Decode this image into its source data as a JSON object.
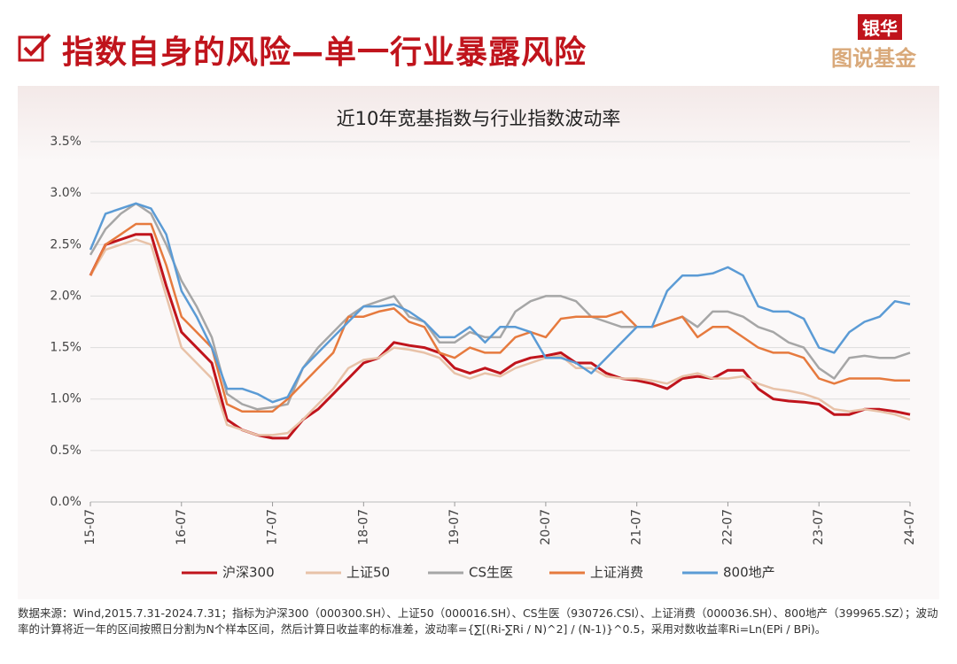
{
  "header": {
    "title": "指数自身的风险—单一行业暴露风险",
    "logo_top": "银华",
    "logo_bottom": "图说基金"
  },
  "footnote": "数据来源：Wind,2015.7.31-2024.7.31；指标为沪深300（000300.SH）、上证50（000016.SH）、CS生医（930726.CSI）、上证消费（000036.SH）、800地产（399965.SZ）；波动率的计算将近一年的区间按照日分割为N个样本区间，然后计算日收益率的标准差，波动率={∑[(Ri-∑Ri / N)^2] / (N-1)}^0.5，采用对数收益率Ri=Ln(EPi / BPi)。",
  "chart_data": {
    "type": "line",
    "title": "近10年宽基指数与行业指数波动率",
    "categories": [
      "15-07",
      null,
      null,
      null,
      null,
      null,
      "16-07",
      null,
      null,
      null,
      null,
      null,
      "17-07",
      null,
      null,
      null,
      null,
      null,
      "18-07",
      null,
      null,
      null,
      null,
      null,
      "19-07",
      null,
      null,
      null,
      null,
      null,
      "20-07",
      null,
      null,
      null,
      null,
      null,
      "21-07",
      null,
      null,
      null,
      null,
      null,
      "22-07",
      null,
      null,
      null,
      null,
      null,
      "23-07",
      null,
      null,
      null,
      null,
      null,
      "24-07"
    ],
    "ylim": [
      0,
      3.5
    ],
    "yticks": [
      {
        "value": 0,
        "label": "0.0%"
      },
      {
        "value": 0.5,
        "label": "0.5%"
      },
      {
        "value": 1,
        "label": "1.0%"
      },
      {
        "value": 1.5,
        "label": "1.5%"
      },
      {
        "value": 2,
        "label": "2.0%"
      },
      {
        "value": 2.5,
        "label": "2.5%"
      },
      {
        "value": 3,
        "label": "3.0%"
      },
      {
        "value": 3.5,
        "label": "3.5%"
      }
    ],
    "grid": true,
    "legend": "bottom",
    "series": [
      {
        "name": "沪深300",
        "color": "#c0141c",
        "values": [
          2.2,
          2.5,
          2.55,
          2.6,
          2.6,
          2.1,
          1.65,
          1.5,
          1.35,
          0.8,
          0.7,
          0.65,
          0.62,
          0.62,
          0.8,
          0.9,
          1.05,
          1.2,
          1.35,
          1.4,
          1.55,
          1.52,
          1.5,
          1.45,
          1.3,
          1.25,
          1.3,
          1.25,
          1.35,
          1.4,
          1.42,
          1.45,
          1.35,
          1.35,
          1.25,
          1.2,
          1.18,
          1.15,
          1.1,
          1.2,
          1.22,
          1.2,
          1.28,
          1.28,
          1.1,
          1.0,
          0.98,
          0.97,
          0.95,
          0.85,
          0.85,
          0.9,
          0.9,
          0.88,
          0.85
        ]
      },
      {
        "name": "上证50",
        "color": "#e8c2a8",
        "values": [
          2.2,
          2.45,
          2.5,
          2.55,
          2.5,
          2.0,
          1.5,
          1.35,
          1.2,
          0.75,
          0.7,
          0.65,
          0.65,
          0.67,
          0.8,
          0.95,
          1.1,
          1.3,
          1.38,
          1.4,
          1.5,
          1.48,
          1.45,
          1.4,
          1.25,
          1.2,
          1.25,
          1.22,
          1.3,
          1.35,
          1.4,
          1.42,
          1.3,
          1.3,
          1.22,
          1.2,
          1.2,
          1.18,
          1.15,
          1.22,
          1.25,
          1.2,
          1.2,
          1.22,
          1.15,
          1.1,
          1.08,
          1.05,
          1.0,
          0.9,
          0.88,
          0.9,
          0.88,
          0.85,
          0.8
        ]
      },
      {
        "name": "CS生医",
        "color": "#a6a6a6",
        "values": [
          2.4,
          2.65,
          2.8,
          2.9,
          2.8,
          2.5,
          2.15,
          1.9,
          1.6,
          1.05,
          0.95,
          0.9,
          0.92,
          0.95,
          1.3,
          1.5,
          1.65,
          1.8,
          1.9,
          1.95,
          2.0,
          1.8,
          1.75,
          1.55,
          1.55,
          1.65,
          1.6,
          1.6,
          1.85,
          1.95,
          2.0,
          2.0,
          1.95,
          1.8,
          1.75,
          1.7,
          1.7,
          1.7,
          1.75,
          1.8,
          1.7,
          1.85,
          1.85,
          1.8,
          1.7,
          1.65,
          1.55,
          1.5,
          1.3,
          1.2,
          1.4,
          1.42,
          1.4,
          1.4,
          1.45
        ]
      },
      {
        "name": "上证消费",
        "color": "#e67a3e",
        "values": [
          2.2,
          2.5,
          2.6,
          2.7,
          2.7,
          2.3,
          1.8,
          1.65,
          1.5,
          0.95,
          0.88,
          0.88,
          0.88,
          1.0,
          1.15,
          1.3,
          1.45,
          1.8,
          1.8,
          1.85,
          1.88,
          1.75,
          1.7,
          1.45,
          1.4,
          1.5,
          1.45,
          1.45,
          1.6,
          1.65,
          1.6,
          1.78,
          1.8,
          1.8,
          1.8,
          1.85,
          1.7,
          1.7,
          1.75,
          1.8,
          1.6,
          1.7,
          1.7,
          1.6,
          1.5,
          1.45,
          1.45,
          1.4,
          1.2,
          1.15,
          1.2,
          1.2,
          1.2,
          1.18,
          1.18
        ]
      },
      {
        "name": "800地产",
        "color": "#5b9bd5",
        "values": [
          2.45,
          2.8,
          2.85,
          2.9,
          2.85,
          2.6,
          2.05,
          1.8,
          1.5,
          1.1,
          1.1,
          1.05,
          0.97,
          1.02,
          1.3,
          1.45,
          1.6,
          1.75,
          1.9,
          1.9,
          1.92,
          1.85,
          1.75,
          1.6,
          1.6,
          1.7,
          1.55,
          1.7,
          1.7,
          1.65,
          1.4,
          1.4,
          1.35,
          1.25,
          1.4,
          1.55,
          1.7,
          1.7,
          2.05,
          2.2,
          2.2,
          2.22,
          2.28,
          2.2,
          1.9,
          1.85,
          1.85,
          1.78,
          1.5,
          1.45,
          1.65,
          1.75,
          1.8,
          1.95,
          1.92
        ]
      }
    ]
  }
}
